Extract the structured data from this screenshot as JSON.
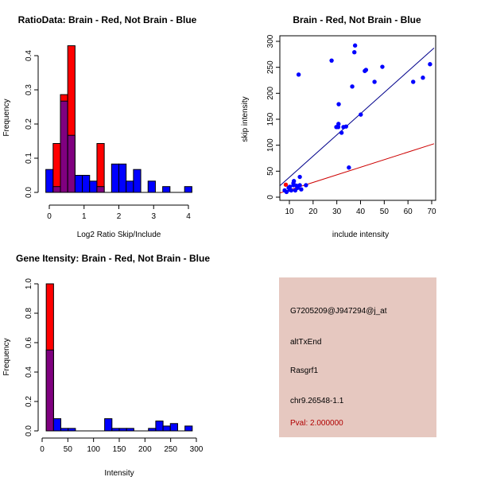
{
  "colors": {
    "red": "#ff0000",
    "blue": "#0000ff",
    "overlap": "#7f007f",
    "panel": "#e6c8c0",
    "pval": "#b00000",
    "fit_blue": "#00008b",
    "fit_red": "#cd0000"
  },
  "chart_data": [
    {
      "type": "bar",
      "title": "RatioData: Brain - Red, Not Brain - Blue",
      "xlabel": "Log2 Ratio Skip/Include",
      "ylabel": "Frequency",
      "xlim": [
        0,
        4
      ],
      "ylim": [
        0,
        0.4
      ],
      "xticks": [
        0,
        1,
        2,
        3,
        4
      ],
      "yticks": [
        0.0,
        0.1,
        0.2,
        0.3,
        0.4
      ],
      "xtick_labels": [
        "0",
        "1",
        "2",
        "3",
        "4"
      ],
      "ytick_labels": [
        "0.0",
        "0.1",
        "0.2",
        "0.3",
        "0.4"
      ],
      "bin_start": -0.1,
      "bin_width": 0.21,
      "series": [
        {
          "name": "Brain",
          "color": "red",
          "values": [
            0,
            0.143,
            0.286,
            0.429,
            0,
            0,
            0,
            0.143,
            0,
            0,
            0,
            0,
            0,
            0,
            0,
            0,
            0,
            0,
            0,
            0
          ]
        },
        {
          "name": "Not Brain",
          "color": "blue",
          "values": [
            0.067,
            0.017,
            0.267,
            0.167,
            0.05,
            0.05,
            0.033,
            0.017,
            0,
            0.083,
            0.083,
            0.033,
            0.067,
            0,
            0.033,
            0,
            0.017,
            0,
            0,
            0.017
          ]
        }
      ]
    },
    {
      "type": "scatter",
      "title": "Brain - Red, Not Brain - Blue",
      "xlabel": "include intensity",
      "ylabel": "skip intensity",
      "xlim": [
        6,
        71
      ],
      "ylim": [
        -2,
        305
      ],
      "xticks": [
        10,
        20,
        30,
        40,
        50,
        60,
        70
      ],
      "yticks": [
        0,
        50,
        100,
        150,
        200,
        250,
        300
      ],
      "xtick_labels": [
        "10",
        "20",
        "30",
        "40",
        "50",
        "60",
        "70"
      ],
      "ytick_labels": [
        "0",
        "50",
        "100",
        "150",
        "200",
        "250",
        "300"
      ],
      "series": [
        {
          "name": "Brain",
          "color": "red",
          "points": [
            [
              8.5,
              24
            ]
          ]
        },
        {
          "name": "Not Brain",
          "color": "blue",
          "points": [
            [
              13.9,
              236
            ],
            [
              27.8,
              263
            ],
            [
              37.4,
              279
            ],
            [
              37.7,
              292
            ],
            [
              41.8,
              243
            ],
            [
              42.3,
              245
            ],
            [
              49.2,
              251
            ],
            [
              45.9,
              222
            ],
            [
              36.5,
              213
            ],
            [
              62.2,
              222
            ],
            [
              66.3,
              230
            ],
            [
              69.3,
              256
            ],
            [
              30.8,
              179
            ],
            [
              40.1,
              159
            ],
            [
              30.7,
              141
            ],
            [
              29.8,
              135
            ],
            [
              30.6,
              135
            ],
            [
              32.8,
              135
            ],
            [
              33.9,
              136
            ],
            [
              32.0,
              124
            ],
            [
              35.1,
              57
            ],
            [
              14.4,
              39
            ],
            [
              8,
              13
            ],
            [
              8.8,
              10
            ],
            [
              9.7,
              18
            ],
            [
              10.2,
              20
            ],
            [
              11.7,
              23
            ],
            [
              11.9,
              31
            ],
            [
              11.7,
              27
            ],
            [
              13,
              22
            ],
            [
              14.4,
              23
            ],
            [
              15,
              15
            ],
            [
              17,
              23
            ],
            [
              10.8,
              13
            ],
            [
              12.5,
              13
            ],
            [
              13.5,
              18
            ],
            [
              10.2,
              14
            ]
          ]
        }
      ],
      "fit_lines": [
        {
          "name": "Not Brain fit",
          "color": "fit_blue",
          "slope": 4.08,
          "intercept": -2.5
        },
        {
          "name": "Brain fit",
          "color": "fit_red",
          "slope": 1.46,
          "intercept": -0.8
        }
      ]
    },
    {
      "type": "bar",
      "title": "Gene Itensity: Brain - Red, Not Brain - Blue",
      "xlabel": "Intensity",
      "ylabel": "Frequency",
      "xlim": [
        0,
        300
      ],
      "ylim": [
        0,
        1.0
      ],
      "xticks": [
        0,
        50,
        100,
        150,
        200,
        250,
        300
      ],
      "yticks": [
        0.0,
        0.2,
        0.4,
        0.6,
        0.8,
        1.0
      ],
      "xtick_labels": [
        "0",
        "50",
        "100",
        "150",
        "200",
        "250",
        "300"
      ],
      "ytick_labels": [
        "0.0",
        "0.2",
        "0.4",
        "0.6",
        "0.8",
        "1.0"
      ],
      "bin_start": 8,
      "bin_width": 14.2,
      "series": [
        {
          "name": "Brain",
          "color": "red",
          "values": [
            1.0,
            0,
            0,
            0,
            0,
            0,
            0,
            0,
            0,
            0,
            0,
            0,
            0,
            0,
            0,
            0,
            0,
            0,
            0,
            0
          ]
        },
        {
          "name": "Not Brain",
          "color": "blue",
          "values": [
            0.55,
            0.083,
            0.017,
            0.017,
            0,
            0,
            0,
            0,
            0.083,
            0.017,
            0.017,
            0.017,
            0,
            0,
            0.017,
            0.067,
            0.033,
            0.05,
            0,
            0.033
          ]
        }
      ]
    }
  ],
  "info": {
    "probe": "G7205209@J947294@j_at",
    "event": "altTxEnd",
    "gene": "Rasgrf1",
    "location": "chr9.26548-1.1",
    "pval": "Pval: 2.000000"
  }
}
